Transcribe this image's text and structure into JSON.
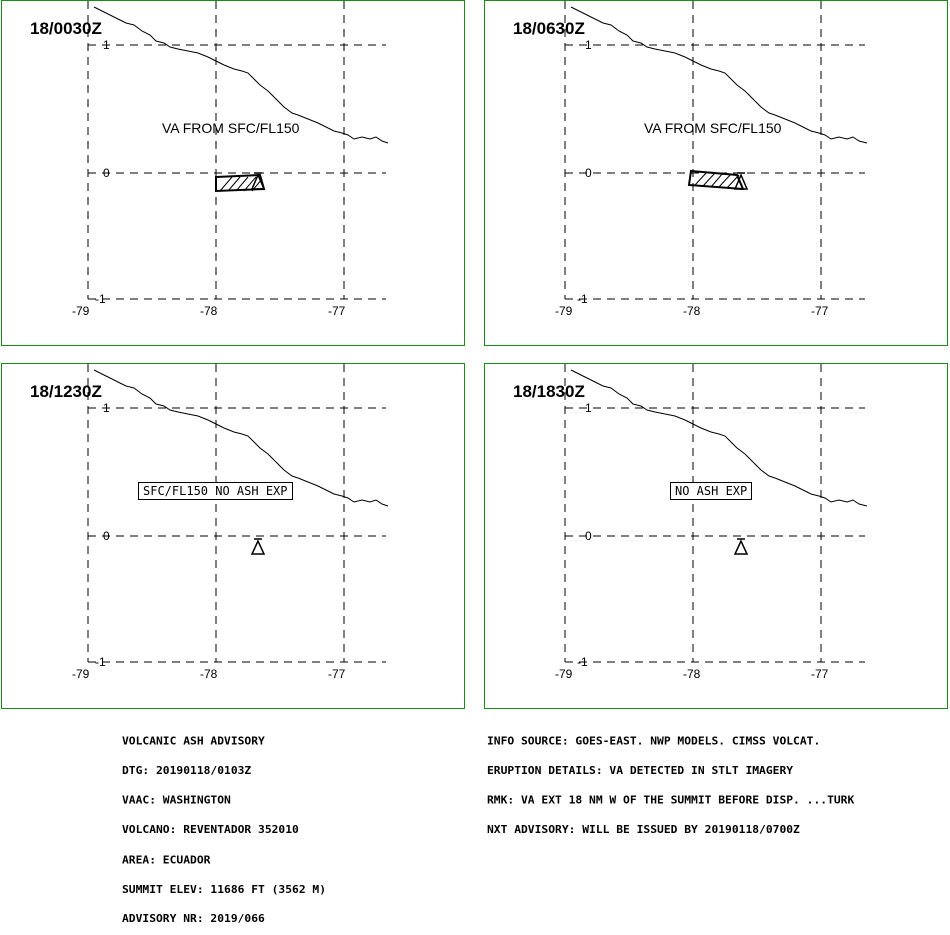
{
  "panels": [
    {
      "id": "p1",
      "time": "18/0030Z",
      "label": "VA FROM SFC/FL150",
      "label_style": "plain",
      "has_ash": true
    },
    {
      "id": "p2",
      "time": "18/0630Z",
      "label": "VA FROM SFC/FL150",
      "label_style": "plain",
      "has_ash": true
    },
    {
      "id": "p3",
      "time": "18/1230Z",
      "label": "SFC/FL150 NO ASH EXP",
      "label_style": "boxed",
      "has_ash": false
    },
    {
      "id": "p4",
      "time": "18/1830Z",
      "label": "NO ASH EXP",
      "label_style": "boxed",
      "has_ash": false
    }
  ],
  "axes": {
    "lat_ticks": [
      "1",
      "0",
      "-1"
    ],
    "lon_ticks": [
      "-79",
      "-78",
      "-77"
    ]
  },
  "colors": {
    "panel_border": "#1a8c1a",
    "lines": "#000000"
  },
  "advisory_left": [
    "VOLCANIC ASH ADVISORY",
    "DTG: 20190118/0103Z",
    "VAAC: WASHINGTON",
    "VOLCANO: REVENTADOR 352010",
    "AREA: ECUADOR",
    "SUMMIT ELEV: 11686 FT (3562 M)",
    "ADVISORY NR: 2019/066"
  ],
  "advisory_right": [
    "INFO SOURCE: GOES-EAST. NWP MODELS. CIMSS VOLCAT.",
    "ERUPTION DETAILS: VA DETECTED IN STLT IMAGERY",
    "RMK: VA EXT 18 NM W OF THE SUMMIT BEFORE DISP. ...TURK",
    "NXT ADVISORY: WILL BE ISSUED BY 20190118/0700Z"
  ]
}
